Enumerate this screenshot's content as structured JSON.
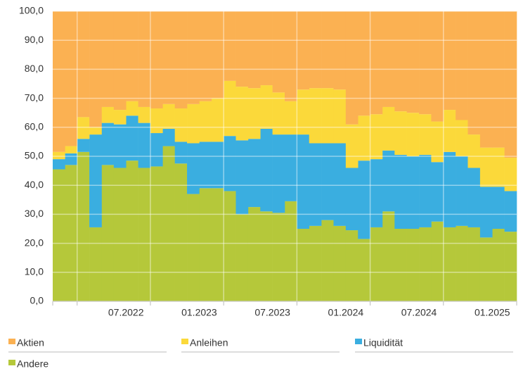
{
  "chart_data": {
    "type": "stacked_bar",
    "categories": [
      null,
      null,
      null,
      null,
      null,
      null,
      "07.2022",
      null,
      null,
      null,
      null,
      null,
      "01.2023",
      null,
      null,
      null,
      null,
      null,
      "07.2023",
      null,
      null,
      null,
      null,
      null,
      "01.2024",
      null,
      null,
      null,
      null,
      null,
      "07.2024",
      null,
      null,
      null,
      null,
      null,
      "01.2025",
      null
    ],
    "series": [
      {
        "name": "Andere",
        "color": "#b5c83a",
        "values": [
          45.5,
          47,
          51.5,
          25.5,
          47,
          46,
          48.5,
          46,
          46.5,
          53.5,
          47.5,
          37,
          39,
          39,
          38,
          30,
          32.5,
          31,
          30.5,
          34.5,
          25,
          26,
          28,
          26,
          24.5,
          21.5,
          25.5,
          31,
          25,
          25,
          25.5,
          27.5,
          25.5,
          26,
          25.5,
          22,
          25,
          24
        ]
      },
      {
        "name": "Liquidität",
        "color": "#3aaee0",
        "values": [
          3.5,
          4,
          4.5,
          32,
          14.5,
          15,
          15.5,
          15.5,
          11.5,
          6,
          7.5,
          17.5,
          16,
          16,
          19,
          25.5,
          23.5,
          28.5,
          27,
          23,
          32.5,
          28.5,
          26.5,
          28.5,
          21.5,
          27,
          23.5,
          21,
          25.5,
          25,
          25,
          20.5,
          26,
          24,
          20.5,
          17.5,
          14.5,
          14
        ]
      },
      {
        "name": "Anleihen",
        "color": "#fbd93a",
        "values": [
          2.5,
          2.5,
          7.5,
          2.5,
          5.5,
          5,
          5,
          5.5,
          8.5,
          8.5,
          11.5,
          13.5,
          14,
          15,
          19,
          18.5,
          17.5,
          15,
          14.5,
          11.5,
          15.5,
          19,
          19,
          18.5,
          15,
          15.5,
          15.5,
          15,
          15,
          15,
          14,
          14,
          14.5,
          12.5,
          11.5,
          13.5,
          13.5,
          11.5
        ]
      },
      {
        "name": "Aktien",
        "color": "#fbb152",
        "values": [
          48.5,
          46.5,
          36.5,
          40,
          33,
          34,
          31,
          33,
          33.5,
          32,
          33.5,
          32,
          31,
          30,
          24,
          26,
          26.5,
          25.5,
          28,
          31,
          27,
          26.5,
          26.5,
          27,
          39,
          36,
          35.5,
          33,
          34.5,
          35,
          35.5,
          38,
          34,
          37.5,
          42.5,
          47,
          47,
          50.5
        ]
      }
    ],
    "ylim": [
      0,
      100
    ],
    "yticks": [
      {
        "value": 0,
        "label": "0,0"
      },
      {
        "value": 10,
        "label": "10,0"
      },
      {
        "value": 20,
        "label": "20,0"
      },
      {
        "value": 30,
        "label": "30,0"
      },
      {
        "value": 40,
        "label": "40,0"
      },
      {
        "value": 50,
        "label": "50,0"
      },
      {
        "value": 60,
        "label": "60,0"
      },
      {
        "value": 70,
        "label": "70,0"
      },
      {
        "value": 80,
        "label": "80,0"
      },
      {
        "value": 90,
        "label": "90,0"
      },
      {
        "value": 100,
        "label": "100,0"
      }
    ],
    "grid": true
  }
}
